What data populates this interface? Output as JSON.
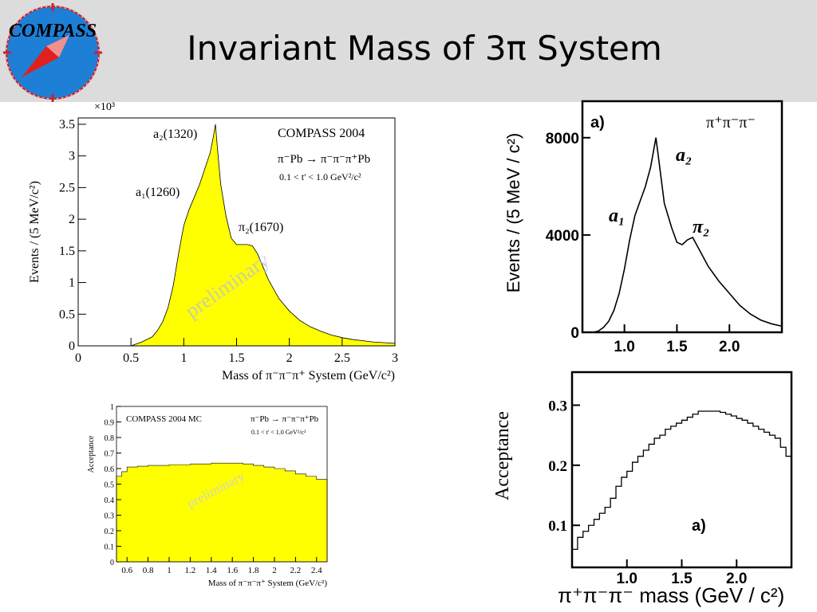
{
  "slide": {
    "title": "Invariant Mass of 3π System",
    "logo_text": "COMPASS",
    "header_bg": "#dcdcdc"
  },
  "chart_data": [
    {
      "type": "area",
      "title": "COMPASS 2004",
      "subtitle": "π⁻Pb → π⁻π⁻π⁺Pb",
      "subtitle2": "0.1 < t' < 1.0 GeV²/c²",
      "xlabel": "Mass of π⁻π⁻π⁺ System (GeV/c²)",
      "ylabel": "Events / (5 MeV/c²)",
      "y_multiplier": "×10³",
      "xlim": [
        0,
        3
      ],
      "ylim": [
        0,
        3.6
      ],
      "xticks": [
        "0",
        "0.5",
        "1",
        "1.5",
        "2",
        "2.5",
        "3"
      ],
      "yticks": [
        "0",
        "0.5",
        "1",
        "1.5",
        "2",
        "2.5",
        "3",
        "3.5"
      ],
      "annotations": [
        "a₂(1320)",
        "a₁(1260)",
        "π₂(1670)"
      ],
      "watermark": "preliminary",
      "fill": "#ffff00",
      "x": [
        0.5,
        0.6,
        0.7,
        0.75,
        0.8,
        0.85,
        0.9,
        0.95,
        1.0,
        1.05,
        1.1,
        1.15,
        1.2,
        1.25,
        1.28,
        1.3,
        1.32,
        1.35,
        1.4,
        1.45,
        1.5,
        1.55,
        1.6,
        1.65,
        1.7,
        1.75,
        1.8,
        1.9,
        2.0,
        2.1,
        2.2,
        2.3,
        2.4,
        2.5,
        2.6,
        2.7,
        2.8,
        2.9,
        3.0
      ],
      "y": [
        0.0,
        0.06,
        0.14,
        0.24,
        0.38,
        0.6,
        0.95,
        1.45,
        1.9,
        2.15,
        2.35,
        2.55,
        2.8,
        3.05,
        3.3,
        3.5,
        3.1,
        2.55,
        2.05,
        1.7,
        1.6,
        1.6,
        1.6,
        1.58,
        1.45,
        1.25,
        1.05,
        0.75,
        0.55,
        0.4,
        0.3,
        0.23,
        0.17,
        0.13,
        0.1,
        0.08,
        0.06,
        0.05,
        0.04
      ]
    },
    {
      "type": "line",
      "panel_label": "a)",
      "legend": "π⁺π⁻π⁻",
      "ylabel": "Events / (5 MeV / c²)",
      "xlim": [
        0.6,
        2.5
      ],
      "ylim": [
        0,
        9500
      ],
      "xticks": [
        "1.0",
        "1.5",
        "2.0"
      ],
      "yticks": [
        "0",
        "4000",
        "8000"
      ],
      "annotations": [
        "a₁",
        "a₂",
        "π₂"
      ],
      "x": [
        0.7,
        0.75,
        0.8,
        0.85,
        0.9,
        0.95,
        1.0,
        1.05,
        1.1,
        1.15,
        1.2,
        1.25,
        1.3,
        1.33,
        1.38,
        1.45,
        1.5,
        1.55,
        1.6,
        1.65,
        1.7,
        1.75,
        1.8,
        1.9,
        2.0,
        2.1,
        2.2,
        2.3,
        2.4,
        2.5
      ],
      "y": [
        0,
        50,
        200,
        450,
        900,
        1600,
        2600,
        3800,
        4800,
        5400,
        6000,
        6800,
        8000,
        7000,
        5300,
        4300,
        3700,
        3600,
        3800,
        3900,
        3500,
        3100,
        2700,
        2100,
        1600,
        1100,
        750,
        500,
        350,
        250
      ]
    },
    {
      "type": "area",
      "title": "COMPASS 2004 MC",
      "subtitle": "π⁻Pb → π⁻π⁻π⁺Pb",
      "subtitle2": "0.1 < t' < 1.0 GeV²/c²",
      "xlabel": "Mass of π⁻π⁻π⁺ System (GeV/c²)",
      "ylabel": "Acceptance",
      "xlim": [
        0.5,
        2.5
      ],
      "ylim": [
        0,
        1
      ],
      "xticks": [
        "0.6",
        "0.8",
        "1",
        "1.2",
        "1.4",
        "1.6",
        "1.8",
        "2",
        "2.2",
        "2.4"
      ],
      "yticks": [
        "0",
        "0.1",
        "0.2",
        "0.3",
        "0.4",
        "0.5",
        "0.6",
        "0.7",
        "0.8",
        "0.9",
        "1"
      ],
      "watermark": "preliminary",
      "fill": "#ffff00",
      "x": [
        0.5,
        0.55,
        0.6,
        0.7,
        0.8,
        1.0,
        1.2,
        1.4,
        1.6,
        1.7,
        1.8,
        1.9,
        2.0,
        2.1,
        2.2,
        2.3,
        2.4,
        2.5
      ],
      "y": [
        0.55,
        0.58,
        0.61,
        0.615,
        0.62,
        0.625,
        0.63,
        0.635,
        0.635,
        0.63,
        0.62,
        0.61,
        0.6,
        0.585,
        0.565,
        0.55,
        0.53,
        0.515
      ]
    },
    {
      "type": "line",
      "panel_label": "a)",
      "ylabel": "Acceptance",
      "xlabel": "π⁺π⁻π⁻ mass  (GeV / c²)",
      "xlim": [
        0.5,
        2.5
      ],
      "ylim": [
        0.03,
        0.355
      ],
      "xticks": [
        "1.0",
        "1.5",
        "2.0"
      ],
      "yticks": [
        "0.1",
        "0.2",
        "0.3"
      ],
      "x": [
        0.5,
        0.55,
        0.6,
        0.65,
        0.7,
        0.75,
        0.8,
        0.85,
        0.9,
        0.95,
        1.0,
        1.05,
        1.1,
        1.15,
        1.2,
        1.25,
        1.3,
        1.35,
        1.4,
        1.45,
        1.5,
        1.55,
        1.6,
        1.65,
        1.7,
        1.75,
        1.8,
        1.85,
        1.9,
        1.95,
        2.0,
        2.05,
        2.1,
        2.15,
        2.2,
        2.25,
        2.3,
        2.35,
        2.4,
        2.45,
        2.5
      ],
      "y": [
        0.06,
        0.08,
        0.09,
        0.1,
        0.11,
        0.12,
        0.13,
        0.145,
        0.165,
        0.18,
        0.19,
        0.205,
        0.215,
        0.225,
        0.235,
        0.245,
        0.25,
        0.26,
        0.265,
        0.27,
        0.275,
        0.28,
        0.285,
        0.29,
        0.29,
        0.29,
        0.29,
        0.288,
        0.285,
        0.282,
        0.278,
        0.275,
        0.27,
        0.265,
        0.26,
        0.255,
        0.25,
        0.245,
        0.23,
        0.215,
        0.205
      ]
    }
  ]
}
